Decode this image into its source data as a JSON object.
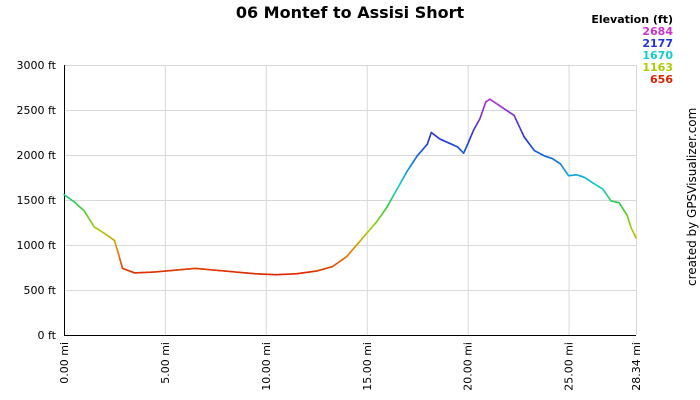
{
  "chart_data": {
    "type": "line",
    "title": "06 Montef to Assisi Short",
    "x_unit": "mi",
    "y_unit": "ft",
    "xlim": [
      0,
      28.34
    ],
    "ylim": [
      0,
      3000
    ],
    "y_ticks": [
      "0 ft",
      "500 ft",
      "1000 ft",
      "1500 ft",
      "2000 ft",
      "2500 ft",
      "3000 ft"
    ],
    "x_ticks": [
      "0.00 mi",
      "5.00 mi",
      "10.00 mi",
      "15.00 mi",
      "20.00 mi",
      "25.00 mi",
      "28.34 mi"
    ],
    "grid": true,
    "legend": {
      "title": "Elevation (ft)",
      "entries": [
        {
          "label": "2684",
          "color": "#cc33cc"
        },
        {
          "label": "2177",
          "color": "#2233dd"
        },
        {
          "label": "1670",
          "color": "#11cccc"
        },
        {
          "label": "1163",
          "color": "#aacc00"
        },
        {
          "label": "656",
          "color": "#dd2200"
        }
      ]
    },
    "series": [
      {
        "points": [
          [
            0.0,
            1560
          ],
          [
            0.5,
            1480
          ],
          [
            1.0,
            1380
          ],
          [
            1.5,
            1200
          ],
          [
            2.0,
            1130
          ],
          [
            2.5,
            1050
          ],
          [
            2.7,
            900
          ],
          [
            2.9,
            740
          ],
          [
            3.5,
            690
          ],
          [
            4.5,
            700
          ],
          [
            5.5,
            720
          ],
          [
            6.5,
            740
          ],
          [
            7.5,
            720
          ],
          [
            8.5,
            700
          ],
          [
            9.5,
            680
          ],
          [
            10.5,
            670
          ],
          [
            11.5,
            680
          ],
          [
            12.5,
            710
          ],
          [
            13.3,
            760
          ],
          [
            14.0,
            870
          ],
          [
            14.5,
            1000
          ],
          [
            15.0,
            1130
          ],
          [
            15.5,
            1260
          ],
          [
            16.0,
            1420
          ],
          [
            16.5,
            1620
          ],
          [
            17.0,
            1820
          ],
          [
            17.5,
            1990
          ],
          [
            18.0,
            2120
          ],
          [
            18.2,
            2250
          ],
          [
            18.6,
            2180
          ],
          [
            19.0,
            2140
          ],
          [
            19.5,
            2090
          ],
          [
            19.8,
            2020
          ],
          [
            20.0,
            2120
          ],
          [
            20.3,
            2280
          ],
          [
            20.6,
            2400
          ],
          [
            20.9,
            2590
          ],
          [
            21.1,
            2620
          ],
          [
            21.5,
            2560
          ],
          [
            21.9,
            2500
          ],
          [
            22.3,
            2440
          ],
          [
            22.8,
            2200
          ],
          [
            23.3,
            2050
          ],
          [
            23.8,
            1990
          ],
          [
            24.2,
            1960
          ],
          [
            24.6,
            1900
          ],
          [
            25.0,
            1770
          ],
          [
            25.4,
            1780
          ],
          [
            25.8,
            1750
          ],
          [
            26.2,
            1690
          ],
          [
            26.7,
            1620
          ],
          [
            27.1,
            1490
          ],
          [
            27.5,
            1470
          ],
          [
            27.9,
            1330
          ],
          [
            28.1,
            1190
          ],
          [
            28.34,
            1080
          ]
        ]
      }
    ],
    "color_scale": "elevation: red (low) → orange → yellow-green → cyan → blue → purple (high)",
    "credit": "created by GPSVisualizer.com"
  }
}
